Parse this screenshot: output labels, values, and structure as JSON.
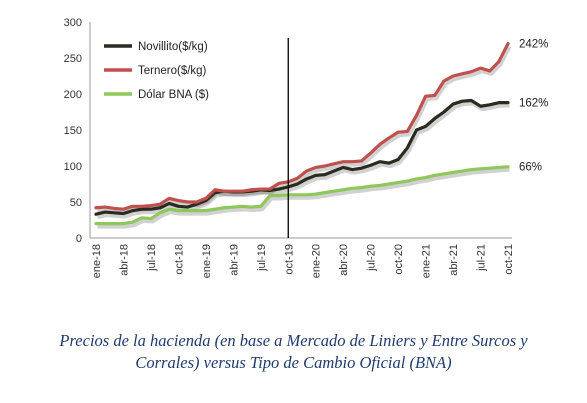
{
  "chart_data": {
    "type": "line",
    "y_ticks": [
      "0",
      "50",
      "100",
      "150",
      "200",
      "250",
      "300"
    ],
    "ylim": [
      0,
      300
    ],
    "grid": false,
    "legend_position": "top-left",
    "x_tick_labels": [
      "ene-18",
      "abr-18",
      "jul-18",
      "oct-18",
      "ene-19",
      "abr-19",
      "jul-19",
      "oct-19",
      "ene-20",
      "abr-20",
      "jul-20",
      "oct-20",
      "ene-21",
      "abr-21",
      "jul-21",
      "oct-21"
    ],
    "x": [
      "ene-18",
      "feb-18",
      "mar-18",
      "abr-18",
      "may-18",
      "jun-18",
      "jul-18",
      "ago-18",
      "sep-18",
      "oct-18",
      "nov-18",
      "dic-18",
      "ene-19",
      "feb-19",
      "mar-19",
      "abr-19",
      "may-19",
      "jun-19",
      "jul-19",
      "ago-19",
      "sep-19",
      "oct-19",
      "nov-19",
      "dic-19",
      "ene-20",
      "feb-20",
      "mar-20",
      "abr-20",
      "may-20",
      "jun-20",
      "jul-20",
      "ago-20",
      "sep-20",
      "oct-20",
      "nov-20",
      "dic-20",
      "ene-21",
      "feb-21",
      "mar-21",
      "abr-21",
      "may-21",
      "jun-21",
      "jul-21",
      "ago-21",
      "sep-21",
      "oct-21"
    ],
    "vertical_marker": "oct-19",
    "series": [
      {
        "name": "Novillito($/kg)",
        "color": "#2b2b1f",
        "end_label": "162%",
        "values": [
          33,
          36,
          35,
          34,
          38,
          40,
          40,
          42,
          48,
          44,
          43,
          47,
          52,
          63,
          65,
          64,
          64,
          65,
          67,
          66,
          68,
          71,
          75,
          82,
          87,
          88,
          93,
          98,
          95,
          97,
          101,
          106,
          104,
          109,
          125,
          150,
          155,
          166,
          175,
          186,
          190,
          191,
          183,
          185,
          188,
          188
        ]
      },
      {
        "name": "Ternero($/kg)",
        "color": "#c0504d",
        "end_label": "242%",
        "values": [
          42,
          43,
          41,
          40,
          44,
          44,
          45,
          47,
          55,
          52,
          50,
          50,
          55,
          67,
          65,
          65,
          65,
          67,
          68,
          68,
          76,
          78,
          83,
          93,
          98,
          100,
          103,
          106,
          106,
          107,
          118,
          130,
          139,
          147,
          148,
          170,
          197,
          198,
          218,
          225,
          228,
          231,
          236,
          232,
          245,
          270
        ]
      },
      {
        "name": "Dólar BNA ($)",
        "color": "#8ec85a",
        "end_label": "66%",
        "values": [
          20,
          20,
          20,
          20,
          22,
          28,
          27,
          35,
          40,
          38,
          38,
          38,
          38,
          40,
          42,
          43,
          44,
          43,
          44,
          59,
          59,
          60,
          60,
          60,
          61,
          63,
          65,
          67,
          69,
          70,
          72,
          73,
          75,
          77,
          79,
          82,
          84,
          87,
          89,
          91,
          93,
          95,
          96,
          97,
          98,
          99
        ]
      }
    ]
  },
  "caption": "Precios de la hacienda (en base a Mercado de Liniers y Entre Surcos y Corrales) versus Tipo de Cambio Oficial (BNA)"
}
